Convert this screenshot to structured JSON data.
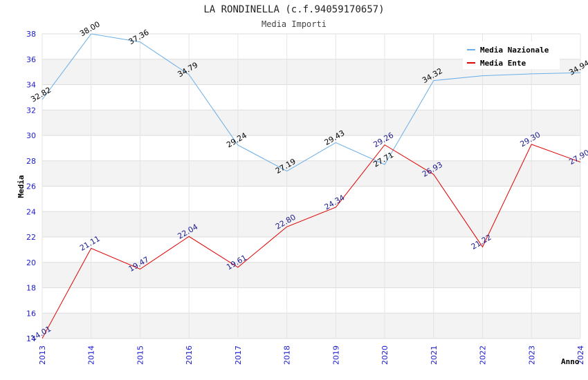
{
  "chart_data": {
    "type": "line",
    "title": "LA RONDINELLA (c.f.94059170657)",
    "subtitle": "Media Importi",
    "xlabel": "Anno",
    "ylabel": "Media",
    "ylim": [
      14,
      38
    ],
    "yticks": [
      14,
      16,
      18,
      20,
      22,
      24,
      26,
      28,
      30,
      32,
      34,
      36,
      38
    ],
    "grid": true,
    "legend_position": "top-right",
    "categories": [
      "2013",
      "2014",
      "2015",
      "2016",
      "2017",
      "2018",
      "2019",
      "2020",
      "2021",
      "2022",
      "2023",
      "2024"
    ],
    "series": [
      {
        "name": "Media Nazionale",
        "color": "#6aaee8",
        "label_color": "#000000",
        "values": [
          32.82,
          38.0,
          37.36,
          34.79,
          29.24,
          27.19,
          29.43,
          27.71,
          34.32,
          34.7,
          34.85,
          34.94
        ],
        "labels": [
          "32.82",
          "38.00",
          "37.36",
          "34.79",
          "29.24",
          "27.19",
          "29.43",
          "27.71",
          "34.32",
          "",
          "",
          "34.94"
        ]
      },
      {
        "name": "Media Ente",
        "color": "#e00000",
        "label_color": "#1a1a8c",
        "values": [
          14.01,
          21.11,
          19.47,
          22.04,
          19.61,
          22.8,
          24.34,
          29.26,
          26.93,
          21.22,
          29.3,
          27.9
        ],
        "labels": [
          "14.01",
          "21.11",
          "19.47",
          "22.04",
          "19.61",
          "22.80",
          "24.34",
          "29.26",
          "26.93",
          "21.22",
          "29.30",
          "27.90"
        ]
      }
    ]
  }
}
